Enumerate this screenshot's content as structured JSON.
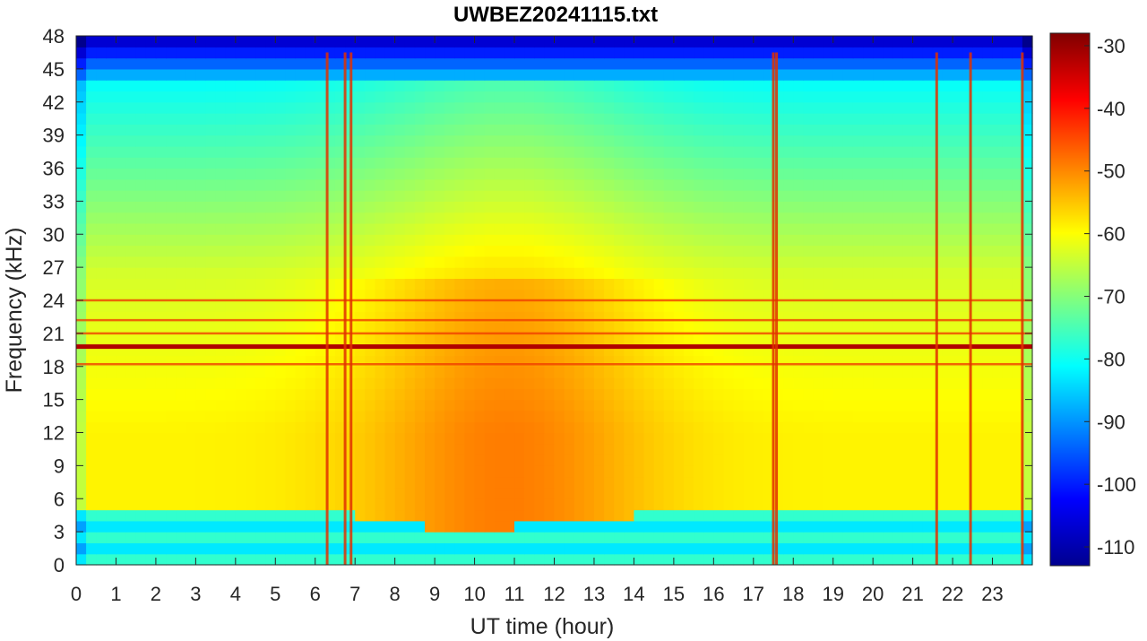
{
  "chart_data": {
    "type": "heatmap",
    "title": "UWBEZ20241115.txt",
    "xlabel": "UT time (hour)",
    "ylabel": "Frequency (kHz)",
    "xlim": [
      0,
      24
    ],
    "ylim": [
      0,
      48
    ],
    "x_ticks": [
      0,
      1,
      2,
      3,
      4,
      5,
      6,
      7,
      8,
      9,
      10,
      11,
      12,
      13,
      14,
      15,
      16,
      17,
      18,
      19,
      20,
      21,
      22,
      23
    ],
    "y_ticks": [
      0,
      3,
      6,
      9,
      12,
      15,
      18,
      21,
      24,
      27,
      30,
      33,
      36,
      39,
      42,
      45,
      48
    ],
    "colorbar": {
      "ticks": [
        -30,
        -40,
        -50,
        -60,
        -70,
        -80,
        -90,
        -100,
        -110
      ],
      "range": [
        -113,
        -28
      ],
      "colormap": "jet"
    },
    "features": {
      "strong_tones_khz": [
        19.8,
        24.0,
        18.2,
        21.0,
        22.2
      ],
      "broadband_spikes_hour": [
        6.3,
        6.75,
        6.9,
        17.5,
        17.58,
        21.6,
        22.45,
        23.75
      ],
      "dayside_lower_cutoff": [
        [
          0,
          4.5
        ],
        [
          4,
          5.2
        ],
        [
          6,
          5
        ],
        [
          8,
          4
        ],
        [
          9.5,
          3
        ],
        [
          12,
          3.8
        ],
        [
          14,
          4.5
        ],
        [
          16,
          5
        ],
        [
          18,
          5.2
        ],
        [
          24,
          4.8
        ]
      ]
    }
  }
}
